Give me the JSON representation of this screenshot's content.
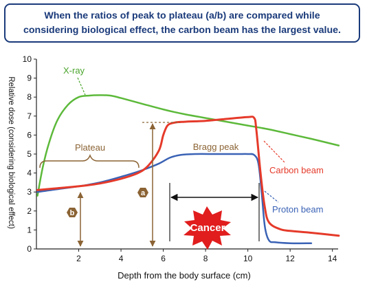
{
  "banner": {
    "text": "When the ratios of peak to plateau (a/b) are compared while\nconsidering biological effect, the carbon beam has the largest value."
  },
  "chart_data": {
    "type": "line",
    "xlabel": "Depth from the body surface (cm)",
    "ylabel": "Relative dose (considering biological effect)",
    "xlim": [
      0,
      14.4
    ],
    "ylim": [
      0,
      10
    ],
    "xticks": [
      2,
      4,
      6,
      8,
      10,
      12,
      14
    ],
    "yticks": [
      0,
      1,
      2,
      3,
      4,
      5,
      6,
      7,
      8,
      9,
      10
    ],
    "grid": false,
    "series": [
      {
        "name": "X-ray",
        "color": "#5cb93a",
        "x": [
          0.05,
          0.3,
          0.6,
          1.0,
          1.5,
          2.0,
          2.5,
          3.0,
          3.5,
          4.0,
          5.0,
          6.0,
          7.0,
          8.0,
          9.0,
          10.0,
          11.0,
          12.0,
          13.0,
          14.3
        ],
        "y": [
          2.8,
          4.3,
          5.6,
          6.8,
          7.6,
          8.0,
          8.08,
          8.1,
          8.08,
          7.95,
          7.65,
          7.35,
          7.1,
          6.9,
          6.7,
          6.5,
          6.3,
          6.05,
          5.8,
          5.45
        ]
      },
      {
        "name": "Carbon beam",
        "color": "#e53a2a",
        "x": [
          0.05,
          1.0,
          2.0,
          3.0,
          4.0,
          4.8,
          5.3,
          5.8,
          6.0,
          6.2,
          6.5,
          7.0,
          8.0,
          9.0,
          10.0,
          10.3,
          10.4,
          10.6,
          10.8,
          11.0,
          11.5,
          12.0,
          13.0,
          14.3
        ],
        "y": [
          3.1,
          3.2,
          3.3,
          3.45,
          3.7,
          4.0,
          4.4,
          5.2,
          6.0,
          6.5,
          6.65,
          6.7,
          6.75,
          6.85,
          6.95,
          6.9,
          6.3,
          4.0,
          2.2,
          1.4,
          1.05,
          0.95,
          0.85,
          0.7
        ]
      },
      {
        "name": "Proton beam",
        "color": "#3a62b5",
        "x": [
          0.05,
          1.0,
          2.0,
          3.0,
          4.0,
          5.0,
          5.8,
          6.3,
          6.8,
          7.5,
          8.5,
          9.5,
          10.0,
          10.3,
          10.5,
          10.65,
          10.8,
          11.0,
          11.3,
          12.0,
          13.0
        ],
        "y": [
          3.0,
          3.15,
          3.3,
          3.5,
          3.8,
          4.15,
          4.5,
          4.8,
          4.95,
          5.0,
          5.0,
          5.0,
          5.0,
          4.95,
          4.5,
          3.0,
          1.2,
          0.45,
          0.35,
          0.3,
          0.3
        ]
      }
    ],
    "annotations": {
      "xray_label": "X-ray",
      "plateau_label": "Plateau",
      "bragg_label": "Bragg peak",
      "carbon_label": "Carbon beam",
      "proton_label": "Proton beam",
      "cancer_label": "Cancer",
      "a_marker": "a",
      "b_marker": "b"
    },
    "colors": {
      "annotation": "#8b6334",
      "axis": "#222222",
      "cancer_burst": "#e11d1d"
    }
  }
}
